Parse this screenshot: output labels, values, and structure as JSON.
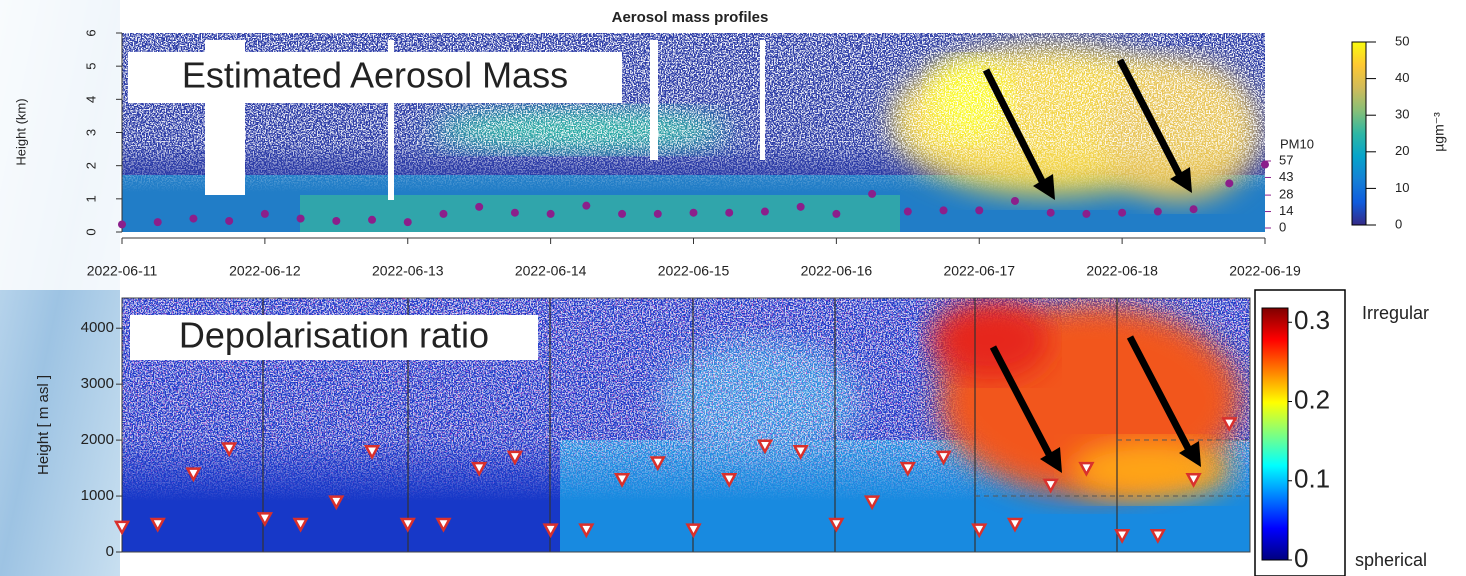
{
  "chart_data": [
    {
      "type": "scatter",
      "title": "Aerosol mass profiles",
      "annotation": "Estimated Aerosol Mass",
      "ylabel": "Height (km)",
      "ylim": [
        0,
        6
      ],
      "yticks": [
        0,
        1,
        2,
        3,
        4,
        5,
        6
      ],
      "xticks": [
        "2022-06-11",
        "2022-06-12",
        "2022-06-13",
        "2022-06-14",
        "2022-06-15",
        "2022-06-16",
        "2022-06-17",
        "2022-06-18",
        "2022-06-19"
      ],
      "y2label": "PM10",
      "y2lim": [
        -3.4,
        165.9
      ],
      "y2ticks": [
        0,
        14,
        28,
        43,
        57
      ],
      "series": [
        {
          "color": "#8b1f8b",
          "axis": "y2",
          "values": [
            3,
            5,
            8,
            6,
            12,
            8,
            6,
            7,
            5,
            12,
            18,
            13,
            12,
            19,
            12,
            12,
            13,
            13,
            14,
            18,
            12,
            29,
            14,
            15,
            15,
            23,
            13,
            12,
            13,
            14,
            16,
            38,
            54
          ]
        }
      ],
      "colorbar_label": "µgm⁻³",
      "clim": [
        0,
        50
      ],
      "cticks": [
        0,
        10,
        20,
        30,
        40,
        50
      ],
      "colormap": [
        "#352a87",
        "#0f5cdd",
        "#1481d6",
        "#06a4ca",
        "#2eb7a4",
        "#87bf77",
        "#d1bb59",
        "#fec832",
        "#f9fb0e"
      ]
    },
    {
      "type": "scatter",
      "annotation": "Depolarisation ratio",
      "ylabel": "Height [ m asl ]",
      "ylim": [
        0,
        4540
      ],
      "yticks": [
        0,
        1000,
        2000,
        3000,
        4000
      ],
      "series": [
        {
          "color": "#d9302c",
          "values": [
            450,
            500,
            1400,
            1850,
            600,
            500,
            900,
            1800,
            500,
            500,
            1500,
            1700,
            400,
            400,
            1300,
            1600,
            400,
            1300,
            1900,
            1800,
            500,
            900,
            1500,
            1700,
            400,
            500,
            1200,
            1500,
            300,
            300,
            1300,
            2300
          ]
        }
      ],
      "clim": [
        0,
        0.318
      ],
      "cticks": [
        0,
        0.1,
        0.2,
        0.3
      ],
      "colorbar_high": "Irregular",
      "colorbar_low": "spherical",
      "colormap": [
        "#00007f",
        "#0000ff",
        "#007fff",
        "#00ffff",
        "#7fff7f",
        "#ffff00",
        "#ff7f00",
        "#ff0000",
        "#7f0000"
      ]
    }
  ]
}
